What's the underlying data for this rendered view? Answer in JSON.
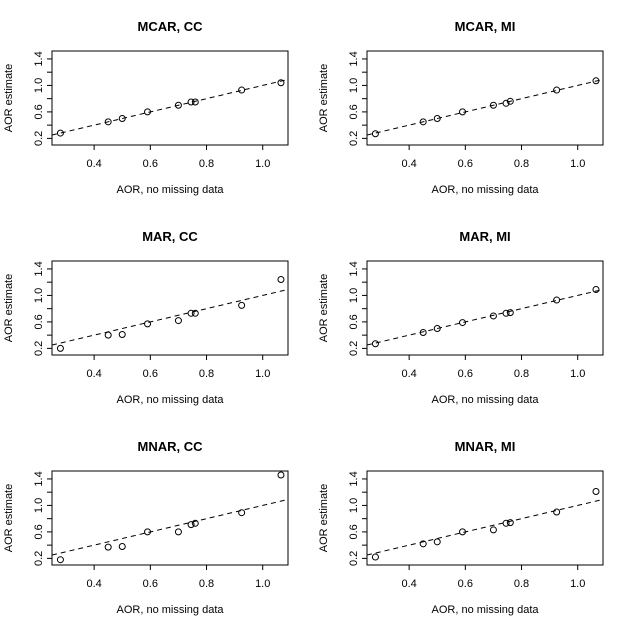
{
  "chart_data": [
    {
      "type": "scatter",
      "title": "MCAR, CC",
      "xlabel": "AOR, no missing data",
      "ylabel": "AOR estimate",
      "x": [
        0.28,
        0.45,
        0.5,
        0.59,
        0.7,
        0.745,
        0.76,
        0.925,
        1.065
      ],
      "y": [
        0.28,
        0.45,
        0.5,
        0.6,
        0.7,
        0.75,
        0.75,
        0.93,
        1.04
      ],
      "xlim": [
        0.25,
        1.09
      ],
      "ylim": [
        0.1,
        1.52
      ],
      "xticks": [
        0.4,
        0.6,
        0.8,
        1.0
      ],
      "yticks": [
        0.2,
        0.4,
        0.6,
        0.8,
        1.0,
        1.2,
        1.4
      ],
      "yticklabels": [
        "0.2",
        "0.6",
        "1.0",
        "1.4"
      ],
      "reference_line": "y = x (dashed)",
      "grid": false
    },
    {
      "type": "scatter",
      "title": "MCAR, MI",
      "xlabel": "AOR, no missing data",
      "ylabel": "AOR estimate",
      "x": [
        0.28,
        0.45,
        0.5,
        0.59,
        0.7,
        0.745,
        0.76,
        0.925,
        1.065
      ],
      "y": [
        0.27,
        0.45,
        0.5,
        0.6,
        0.7,
        0.73,
        0.76,
        0.93,
        1.07
      ],
      "xlim": [
        0.25,
        1.09
      ],
      "ylim": [
        0.1,
        1.52
      ],
      "xticks": [
        0.4,
        0.6,
        0.8,
        1.0
      ],
      "yticks": [
        0.2,
        0.4,
        0.6,
        0.8,
        1.0,
        1.2,
        1.4
      ],
      "yticklabels": [
        "0.2",
        "0.6",
        "1.0",
        "1.4"
      ],
      "reference_line": "y = x (dashed)",
      "grid": false
    },
    {
      "type": "scatter",
      "title": "MAR, CC",
      "xlabel": "AOR, no missing data",
      "ylabel": "AOR estimate",
      "x": [
        0.28,
        0.45,
        0.5,
        0.59,
        0.7,
        0.745,
        0.76,
        0.925,
        1.065
      ],
      "y": [
        0.2,
        0.4,
        0.41,
        0.57,
        0.62,
        0.73,
        0.73,
        0.85,
        1.24
      ],
      "xlim": [
        0.25,
        1.09
      ],
      "ylim": [
        0.1,
        1.52
      ],
      "xticks": [
        0.4,
        0.6,
        0.8,
        1.0
      ],
      "yticks": [
        0.2,
        0.4,
        0.6,
        0.8,
        1.0,
        1.2,
        1.4
      ],
      "yticklabels": [
        "0.2",
        "0.6",
        "1.0",
        "1.4"
      ],
      "reference_line": "y = x (dashed)",
      "grid": false
    },
    {
      "type": "scatter",
      "title": "MAR, MI",
      "xlabel": "AOR, no missing data",
      "ylabel": "AOR estimate",
      "x": [
        0.28,
        0.45,
        0.5,
        0.59,
        0.7,
        0.745,
        0.76,
        0.925,
        1.065
      ],
      "y": [
        0.27,
        0.44,
        0.5,
        0.59,
        0.69,
        0.73,
        0.74,
        0.93,
        1.09
      ],
      "xlim": [
        0.25,
        1.09
      ],
      "ylim": [
        0.1,
        1.52
      ],
      "xticks": [
        0.4,
        0.6,
        0.8,
        1.0
      ],
      "yticks": [
        0.2,
        0.4,
        0.6,
        0.8,
        1.0,
        1.2,
        1.4
      ],
      "yticklabels": [
        "0.2",
        "0.6",
        "1.0",
        "1.4"
      ],
      "reference_line": "y = x (dashed)",
      "grid": false
    },
    {
      "type": "scatter",
      "title": "MNAR, CC",
      "xlabel": "AOR, no missing data",
      "ylabel": "AOR estimate",
      "x": [
        0.28,
        0.45,
        0.5,
        0.59,
        0.7,
        0.745,
        0.76,
        0.925,
        1.065
      ],
      "y": [
        0.18,
        0.37,
        0.38,
        0.6,
        0.6,
        0.71,
        0.73,
        0.89,
        1.46
      ],
      "xlim": [
        0.25,
        1.09
      ],
      "ylim": [
        0.1,
        1.52
      ],
      "xticks": [
        0.4,
        0.6,
        0.8,
        1.0
      ],
      "yticks": [
        0.2,
        0.4,
        0.6,
        0.8,
        1.0,
        1.2,
        1.4
      ],
      "yticklabels": [
        "0.2",
        "0.6",
        "1.0",
        "1.4"
      ],
      "reference_line": "y = x (dashed)",
      "grid": false
    },
    {
      "type": "scatter",
      "title": "MNAR, MI",
      "xlabel": "AOR, no missing data",
      "ylabel": "AOR estimate",
      "x": [
        0.28,
        0.45,
        0.5,
        0.59,
        0.7,
        0.745,
        0.76,
        0.925,
        1.065
      ],
      "y": [
        0.22,
        0.42,
        0.45,
        0.6,
        0.63,
        0.73,
        0.74,
        0.9,
        1.21
      ],
      "xlim": [
        0.25,
        1.09
      ],
      "ylim": [
        0.1,
        1.52
      ],
      "xticks": [
        0.4,
        0.6,
        0.8,
        1.0
      ],
      "yticks": [
        0.2,
        0.4,
        0.6,
        0.8,
        1.0,
        1.2,
        1.4
      ],
      "yticklabels": [
        "0.2",
        "0.6",
        "1.0",
        "1.4"
      ],
      "reference_line": "y = x (dashed)",
      "grid": false
    }
  ]
}
